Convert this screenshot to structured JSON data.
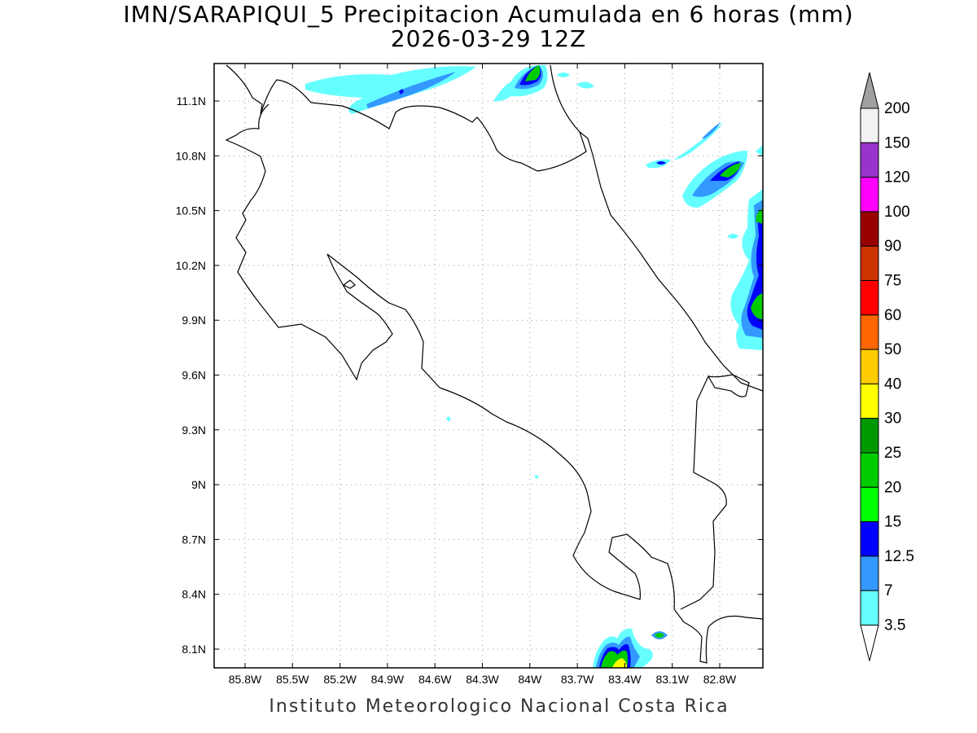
{
  "title_line1": "IMN/SARAPIQUI_5 Precipitacion Acumulada en 6 horas (mm)",
  "title_line2": "2026-03-29 12Z",
  "footer": "Instituto Meteorologico Nacional Costa Rica",
  "map": {
    "lat_ticks": [
      "11.1N",
      "10.8N",
      "10.5N",
      "10.2N",
      "9.9N",
      "9.6N",
      "9.3N",
      "9N",
      "8.7N",
      "8.4N",
      "8.1N"
    ],
    "lon_ticks": [
      "85.8W",
      "85.5W",
      "85.2W",
      "84.9W",
      "84.6W",
      "84.3W",
      "84W",
      "83.7W",
      "83.4W",
      "83.1W",
      "82.8W"
    ],
    "grid": true,
    "coastline_color": "#000000"
  },
  "colorbar": {
    "labels": [
      "200",
      "150",
      "120",
      "100",
      "90",
      "75",
      "60",
      "50",
      "40",
      "30",
      "25",
      "20",
      "15",
      "12.5",
      "7",
      "3.5"
    ],
    "colors": [
      "#f2f2f2",
      "#9933cc",
      "#ff00ff",
      "#990000",
      "#cc3300",
      "#ff0000",
      "#ff6600",
      "#ffcc00",
      "#ffff00",
      "#009900",
      "#00cc00",
      "#00ff00",
      "#0000ff",
      "#3399ff",
      "#66ffff"
    ],
    "overflow_color": "#a0a0a0"
  }
}
